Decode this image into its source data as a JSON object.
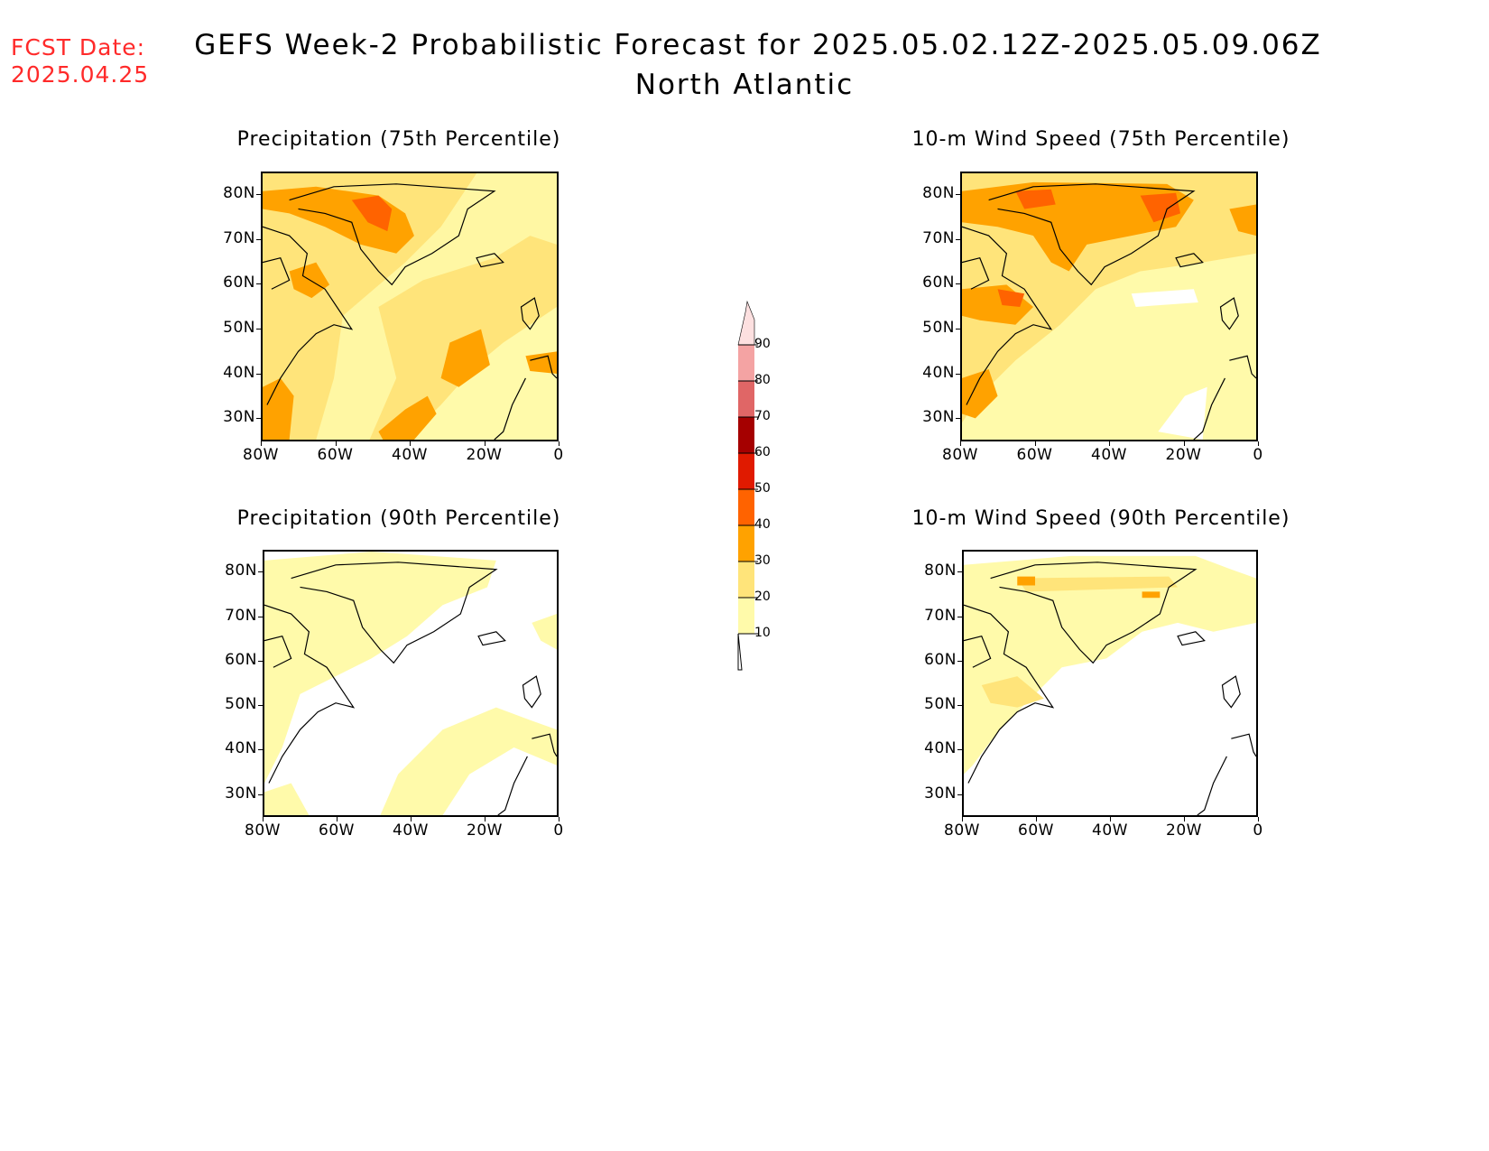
{
  "header": {
    "fcst_label": "FCST Date:",
    "fcst_date": "2025.04.25",
    "title": "GEFS Week-2 Probabilistic Forecast for 2025.05.02.12Z-2025.05.09.06Z",
    "region": "North Atlantic"
  },
  "panels": [
    {
      "title": "Precipitation (75th Percentile)",
      "field": "precip75"
    },
    {
      "title": "10-m Wind Speed (75th Percentile)",
      "field": "wind75"
    },
    {
      "title": "Precipitation (90th Percentile)",
      "field": "precip90"
    },
    {
      "title": "10-m Wind Speed (90th Percentile)",
      "field": "wind90"
    }
  ],
  "axes": {
    "lat_labels": [
      "80N",
      "70N",
      "60N",
      "50N",
      "40N",
      "30N"
    ],
    "lon_labels": [
      "80W",
      "60W",
      "40W",
      "20W",
      "0"
    ]
  },
  "colorbar": {
    "levels": [
      "10",
      "20",
      "30",
      "40",
      "50",
      "60",
      "70",
      "80",
      "90"
    ],
    "colors": [
      "#fffaaa",
      "#ffe47a",
      "#ffa200",
      "#ff6300",
      "#e01a00",
      "#a50000",
      "#e06666",
      "#f4a3a3",
      "#fde0e0"
    ]
  }
}
